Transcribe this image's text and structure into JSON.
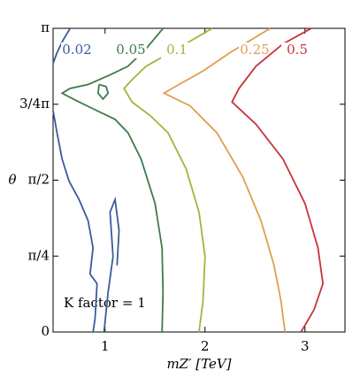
{
  "chart_data": {
    "type": "contour",
    "xlabel": "mZ′ [TeV]",
    "ylabel": "θ",
    "annotation": "K factor = 1",
    "xlim": [
      0.48,
      3.4
    ],
    "xticks": [
      1,
      2,
      3
    ],
    "ylim": [
      0,
      3.1416
    ],
    "yticks": [
      0,
      {
        "value": 0.7854,
        "label": "π/4"
      },
      {
        "value": 1.5708,
        "label": "π/2"
      },
      {
        "value": 2.3562,
        "label": "3/4π"
      },
      {
        "value": 3.1416,
        "label": "π"
      }
    ],
    "series": [
      {
        "name": "0.02",
        "color": "#3b5a9c",
        "x": [
          0.65,
          0.58,
          0.52,
          0.48,
          null,
          0.48,
          0.52,
          0.57,
          0.64,
          0.74,
          0.83,
          0.88,
          0.85,
          0.92,
          0.9,
          0.88,
          null,
          0.99,
          1.03,
          1.08,
          1.05,
          1.1,
          1.14,
          1.12
        ],
        "y": [
          3.14,
          3.02,
          2.89,
          2.78,
          null,
          2.29,
          2.06,
          1.79,
          1.56,
          1.37,
          1.15,
          0.87,
          0.6,
          0.5,
          0.14,
          0,
          null,
          0,
          0.41,
          0.78,
          1.24,
          1.37,
          1.05,
          0.69
        ]
      },
      {
        "name": "0.05",
        "color": "#3f7a4b",
        "x": [
          1.58,
          1.41,
          1.23,
          1.05,
          0.83,
          0.65,
          0.57,
          0.74,
          0.92,
          1.1,
          1.23,
          1.36,
          1.5,
          1.57,
          1.58,
          1.57,
          null,
          0.94,
          1.01,
          1.03,
          0.98,
          0.93,
          0.94
        ],
        "y": [
          3.14,
          2.93,
          2.75,
          2.66,
          2.56,
          2.52,
          2.47,
          2.38,
          2.29,
          2.2,
          2.06,
          1.79,
          1.33,
          0.87,
          0.41,
          0,
          null,
          2.56,
          2.54,
          2.47,
          2.41,
          2.47,
          2.56
        ]
      },
      {
        "name": "0.1",
        "color": "#9cb83c",
        "x": [
          2.07,
          1.72,
          1.41,
          1.27,
          1.19,
          1.27,
          1.45,
          1.63,
          1.81,
          1.94,
          2.0,
          1.98,
          1.94
        ],
        "y": [
          3.14,
          2.93,
          2.75,
          2.61,
          2.52,
          2.38,
          2.24,
          2.06,
          1.69,
          1.24,
          0.78,
          0.32,
          0
        ]
      },
      {
        "name": "0.25",
        "color": "#e19e50",
        "x": [
          2.65,
          2.25,
          1.98,
          1.67,
          1.59,
          1.85,
          2.12,
          2.38,
          2.56,
          2.69,
          2.76,
          2.8
        ],
        "y": [
          3.14,
          2.89,
          2.7,
          2.52,
          2.47,
          2.34,
          2.06,
          1.6,
          1.15,
          0.69,
          0.32,
          0
        ]
      },
      {
        "name": "0.5",
        "color": "#c8323b",
        "x": [
          3.06,
          2.78,
          2.51,
          2.34,
          2.27,
          2.51,
          2.78,
          3.0,
          3.13,
          3.18,
          3.09,
          2.96
        ],
        "y": [
          3.14,
          2.98,
          2.75,
          2.52,
          2.38,
          2.15,
          1.79,
          1.33,
          0.87,
          0.5,
          0.23,
          0
        ]
      }
    ]
  }
}
